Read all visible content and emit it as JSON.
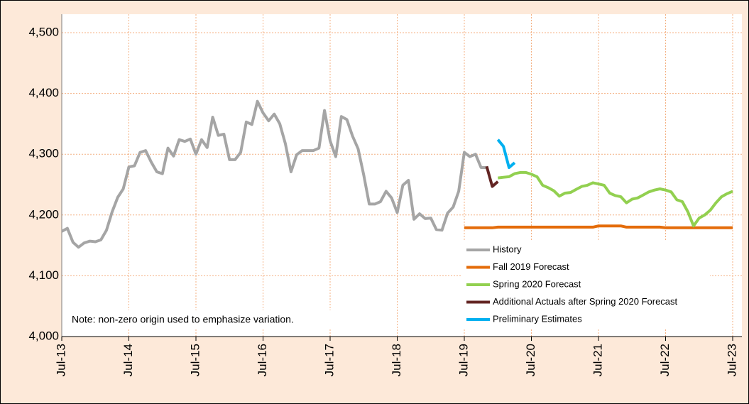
{
  "chart_data": {
    "type": "line",
    "annotation": "Note: non-zero origin used to emphasize variation.",
    "categories": [
      "Jul-13",
      null,
      null,
      null,
      null,
      null,
      null,
      null,
      null,
      null,
      null,
      null,
      "Jul-14",
      null,
      null,
      null,
      null,
      null,
      null,
      null,
      null,
      null,
      null,
      null,
      "Jul-15",
      null,
      null,
      null,
      null,
      null,
      null,
      null,
      null,
      null,
      null,
      null,
      "Jul-16",
      null,
      null,
      null,
      null,
      null,
      null,
      null,
      null,
      null,
      null,
      null,
      "Jul-17",
      null,
      null,
      null,
      null,
      null,
      null,
      null,
      null,
      null,
      null,
      null,
      "Jul-18",
      null,
      null,
      null,
      null,
      null,
      null,
      null,
      null,
      null,
      null,
      null,
      "Jul-19",
      null,
      null,
      null,
      null,
      null,
      null,
      null,
      null,
      null,
      null,
      null,
      "Jul-20",
      null,
      null,
      null,
      null,
      null,
      null,
      null,
      null,
      null,
      null,
      null,
      "Jul-21",
      null,
      null,
      null,
      null,
      null,
      null,
      null,
      null,
      null,
      null,
      null,
      "Jul-22",
      null,
      null,
      null,
      null,
      null,
      null,
      null,
      null,
      null,
      null,
      null,
      "Jul-23"
    ],
    "series": [
      {
        "name": "History",
        "color": "#a5a5a5",
        "values": [
          4173,
          4178,
          4155,
          4147,
          4154,
          4157,
          4156,
          4159,
          4175,
          4205,
          4229,
          4243,
          4279,
          4281,
          4303,
          4306,
          4287,
          4271,
          4268,
          4310,
          4297,
          4324,
          4321,
          4325,
          4300,
          4324,
          4311,
          4361,
          4331,
          4333,
          4291,
          4291,
          4303,
          4353,
          4349,
          4387,
          4368,
          4355,
          4366,
          4350,
          4317,
          4271,
          4299,
          4306,
          4306,
          4306,
          4310,
          4372,
          4322,
          4296,
          4362,
          4357,
          4330,
          4309,
          4266,
          4218,
          4218,
          4222,
          4239,
          4228,
          4204,
          4249,
          4257,
          4193,
          4202,
          4194,
          4195,
          4176,
          4175,
          4203,
          4213,
          4239,
          4303,
          4296,
          4300,
          4278,
          4278,
          null,
          null,
          null,
          null,
          null,
          null,
          null,
          null,
          null,
          null,
          null,
          null,
          null,
          null,
          null,
          null,
          null,
          null,
          null,
          null,
          null,
          null,
          null,
          null,
          null,
          null,
          null,
          null,
          null,
          null,
          null,
          null,
          null,
          null,
          null,
          null,
          null,
          null,
          null,
          null,
          null,
          null,
          null,
          null
        ]
      },
      {
        "name": "Fall 2019 Forecast",
        "color": "#e46c0a",
        "values": [
          null,
          null,
          null,
          null,
          null,
          null,
          null,
          null,
          null,
          null,
          null,
          null,
          null,
          null,
          null,
          null,
          null,
          null,
          null,
          null,
          null,
          null,
          null,
          null,
          null,
          null,
          null,
          null,
          null,
          null,
          null,
          null,
          null,
          null,
          null,
          null,
          null,
          null,
          null,
          null,
          null,
          null,
          null,
          null,
          null,
          null,
          null,
          null,
          null,
          null,
          null,
          null,
          null,
          null,
          null,
          null,
          null,
          null,
          null,
          null,
          null,
          null,
          null,
          null,
          null,
          null,
          null,
          null,
          null,
          null,
          null,
          null,
          4179,
          4179,
          4179,
          4179,
          4179,
          4179,
          4180,
          4180,
          4180,
          4180,
          4180,
          4180,
          4180,
          4180,
          4180,
          4180,
          4180,
          4180,
          4180,
          4180,
          4180,
          4180,
          4180,
          4180,
          4182,
          4182,
          4182,
          4182,
          4182,
          4180,
          4180,
          4180,
          4180,
          4180,
          4180,
          4180,
          4179,
          4179,
          4179,
          4179,
          4179,
          4179,
          4179,
          4179,
          4179,
          4179,
          4179,
          4179,
          4179
        ]
      },
      {
        "name": "Spring 2020 Forecast",
        "color": "#92d050",
        "values": [
          null,
          null,
          null,
          null,
          null,
          null,
          null,
          null,
          null,
          null,
          null,
          null,
          null,
          null,
          null,
          null,
          null,
          null,
          null,
          null,
          null,
          null,
          null,
          null,
          null,
          null,
          null,
          null,
          null,
          null,
          null,
          null,
          null,
          null,
          null,
          null,
          null,
          null,
          null,
          null,
          null,
          null,
          null,
          null,
          null,
          null,
          null,
          null,
          null,
          null,
          null,
          null,
          null,
          null,
          null,
          null,
          null,
          null,
          null,
          null,
          null,
          null,
          null,
          null,
          null,
          null,
          null,
          null,
          null,
          null,
          null,
          null,
          null,
          null,
          null,
          null,
          null,
          null,
          4261,
          4262,
          4263,
          4268,
          4270,
          4270,
          4267,
          4263,
          4249,
          4245,
          4240,
          4231,
          4236,
          4237,
          4242,
          4247,
          4249,
          4253,
          4251,
          4249,
          4236,
          4232,
          4230,
          4220,
          4226,
          4228,
          4233,
          4238,
          4241,
          4243,
          4241,
          4238,
          4225,
          4222,
          4205,
          4182,
          4195,
          4200,
          4208,
          4220,
          4230,
          4235,
          4239
        ]
      },
      {
        "name": "Additional Actuals after Spring 2020 Forecast",
        "color": "#632523",
        "values": [
          null,
          null,
          null,
          null,
          null,
          null,
          null,
          null,
          null,
          null,
          null,
          null,
          null,
          null,
          null,
          null,
          null,
          null,
          null,
          null,
          null,
          null,
          null,
          null,
          null,
          null,
          null,
          null,
          null,
          null,
          null,
          null,
          null,
          null,
          null,
          null,
          null,
          null,
          null,
          null,
          null,
          null,
          null,
          null,
          null,
          null,
          null,
          null,
          null,
          null,
          null,
          null,
          null,
          null,
          null,
          null,
          null,
          null,
          null,
          null,
          null,
          null,
          null,
          null,
          null,
          null,
          null,
          null,
          null,
          null,
          null,
          null,
          null,
          null,
          null,
          null,
          4280,
          4247,
          4255,
          null,
          null,
          null,
          null,
          null,
          null,
          null,
          null,
          null,
          null,
          null,
          null,
          null,
          null,
          null,
          null,
          null,
          null,
          null,
          null,
          null,
          null,
          null,
          null,
          null,
          null,
          null,
          null,
          null,
          null,
          null,
          null,
          null,
          null,
          null,
          null,
          null,
          null,
          null,
          null,
          null,
          null
        ]
      },
      {
        "name": "Preliminary Estimates",
        "color": "#00b0f0",
        "values": [
          null,
          null,
          null,
          null,
          null,
          null,
          null,
          null,
          null,
          null,
          null,
          null,
          null,
          null,
          null,
          null,
          null,
          null,
          null,
          null,
          null,
          null,
          null,
          null,
          null,
          null,
          null,
          null,
          null,
          null,
          null,
          null,
          null,
          null,
          null,
          null,
          null,
          null,
          null,
          null,
          null,
          null,
          null,
          null,
          null,
          null,
          null,
          null,
          null,
          null,
          null,
          null,
          null,
          null,
          null,
          null,
          null,
          null,
          null,
          null,
          null,
          null,
          null,
          null,
          null,
          null,
          null,
          null,
          null,
          null,
          null,
          null,
          null,
          null,
          null,
          null,
          null,
          null,
          4324,
          4313,
          4278,
          4286,
          null,
          null,
          null,
          null,
          null,
          null,
          null,
          null,
          null,
          null,
          null,
          null,
          null,
          null,
          null,
          null,
          null,
          null,
          null,
          null,
          null,
          null,
          null,
          null,
          null,
          null,
          null,
          null,
          null,
          null,
          null,
          null,
          null,
          null,
          null,
          null,
          null,
          null,
          null
        ]
      }
    ],
    "ylim": [
      4000,
      4500
    ],
    "yticks": [
      {
        "value": 4000,
        "label": "4,000"
      },
      {
        "value": 4100,
        "label": "4,100"
      },
      {
        "value": 4200,
        "label": "4,200"
      },
      {
        "value": 4300,
        "label": "4,300"
      },
      {
        "value": 4400,
        "label": "4,400"
      },
      {
        "value": 4500,
        "label": "4,500"
      }
    ],
    "grid": true,
    "legend": "lower right"
  }
}
